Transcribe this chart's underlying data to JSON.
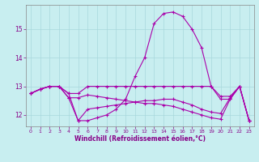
{
  "xlabel": "Windchill (Refroidissement éolien,°C)",
  "background_color": "#c8eef0",
  "grid_color": "#a8d8dc",
  "line_color": "#aa00aa",
  "xlim": [
    -0.5,
    23.5
  ],
  "ylim": [
    11.6,
    15.85
  ],
  "yticks": [
    12,
    13,
    14,
    15
  ],
  "xticks": [
    0,
    1,
    2,
    3,
    4,
    5,
    6,
    7,
    8,
    9,
    10,
    11,
    12,
    13,
    14,
    15,
    16,
    17,
    18,
    19,
    20,
    21,
    22,
    23
  ],
  "line1_x": [
    0,
    1,
    2,
    3,
    4,
    5,
    6,
    7,
    8,
    9,
    10,
    11,
    12,
    13,
    14,
    15,
    16,
    17,
    18,
    19,
    20,
    21,
    22,
    23
  ],
  "line1_y": [
    12.75,
    12.9,
    13.0,
    13.0,
    12.75,
    11.8,
    11.8,
    11.9,
    12.0,
    12.2,
    12.55,
    13.35,
    14.0,
    15.2,
    15.55,
    15.6,
    15.45,
    15.0,
    14.35,
    13.0,
    12.55,
    12.55,
    13.0,
    11.8
  ],
  "line2_x": [
    0,
    1,
    2,
    3,
    4,
    5,
    6,
    7,
    8,
    9,
    10,
    11,
    12,
    13,
    14,
    15,
    16,
    17,
    18,
    19,
    20,
    21,
    22,
    23
  ],
  "line2_y": [
    12.75,
    12.9,
    13.0,
    13.0,
    12.75,
    12.75,
    13.0,
    13.0,
    13.0,
    13.0,
    13.0,
    13.0,
    13.0,
    13.0,
    13.0,
    13.0,
    13.0,
    13.0,
    13.0,
    13.0,
    12.65,
    12.65,
    13.0,
    11.8
  ],
  "line3_x": [
    0,
    1,
    2,
    3,
    4,
    5,
    6,
    7,
    8,
    9,
    10,
    11,
    12,
    13,
    14,
    15,
    16,
    17,
    18,
    19,
    20,
    21,
    22,
    23
  ],
  "line3_y": [
    12.75,
    12.9,
    13.0,
    13.0,
    12.6,
    11.8,
    12.2,
    12.25,
    12.3,
    12.35,
    12.4,
    12.45,
    12.5,
    12.5,
    12.55,
    12.55,
    12.45,
    12.35,
    12.2,
    12.1,
    12.05,
    12.6,
    13.0,
    11.8
  ],
  "line4_x": [
    0,
    1,
    2,
    3,
    4,
    5,
    6,
    7,
    8,
    9,
    10,
    11,
    12,
    13,
    14,
    15,
    16,
    17,
    18,
    19,
    20,
    21,
    22,
    23
  ],
  "line4_y": [
    12.75,
    12.9,
    13.0,
    13.0,
    12.6,
    12.6,
    12.7,
    12.65,
    12.6,
    12.55,
    12.5,
    12.45,
    12.4,
    12.4,
    12.35,
    12.3,
    12.2,
    12.1,
    12.0,
    11.9,
    11.85,
    12.55,
    13.0,
    11.8
  ]
}
